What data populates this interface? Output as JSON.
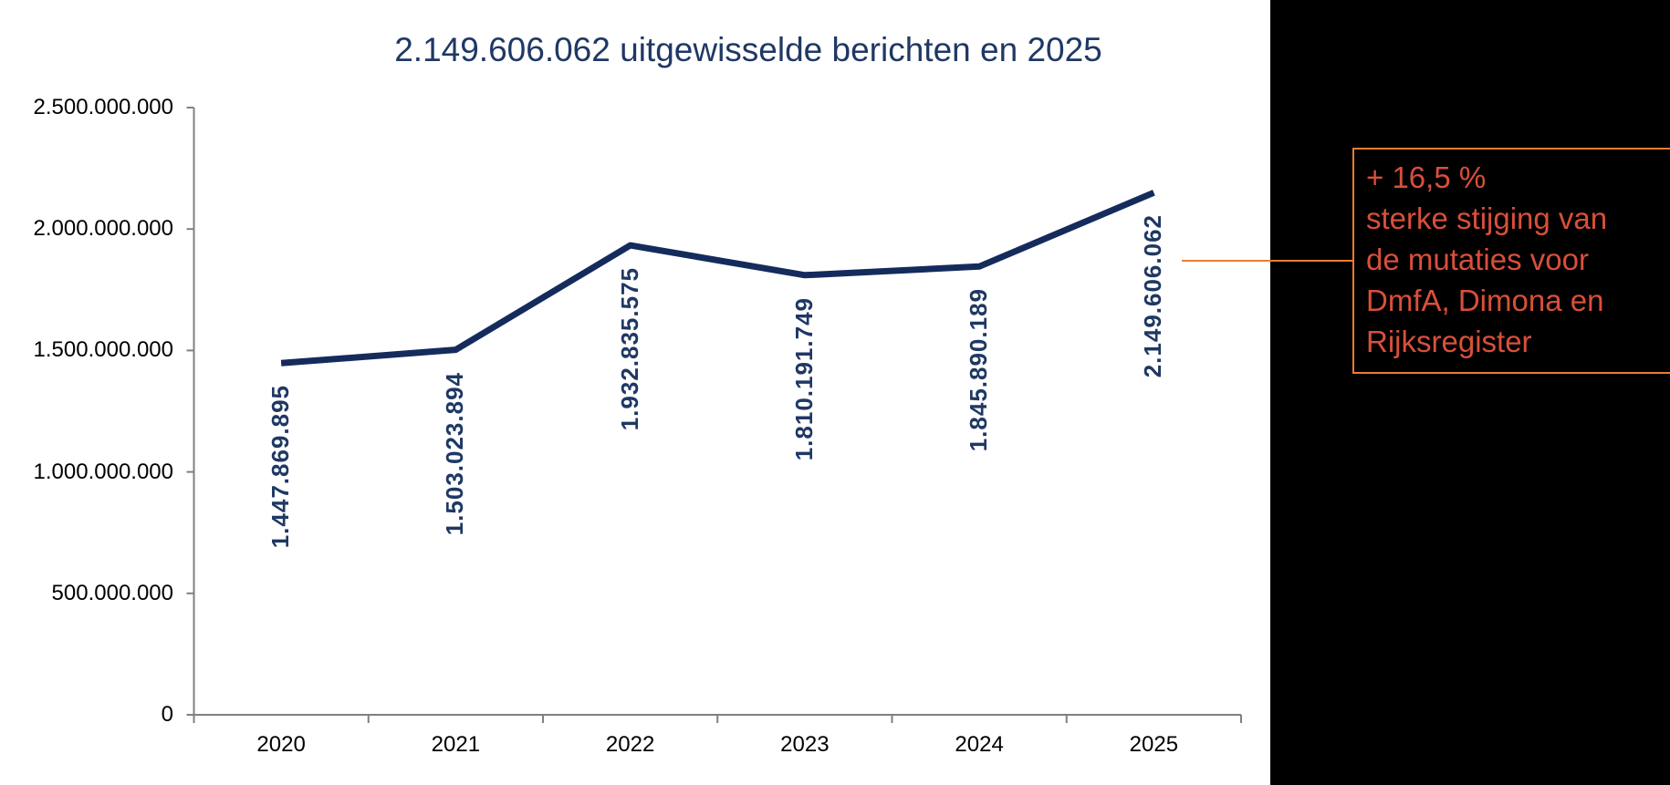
{
  "title": {
    "text": "2.149.606.062 uitgewisselde berichten en 2025"
  },
  "chart_data": {
    "type": "line",
    "title": "2.149.606.062 uitgewisselde berichten en 2025",
    "categories": [
      "2020",
      "2021",
      "2022",
      "2023",
      "2024",
      "2025"
    ],
    "series": [
      {
        "name": "uitgewisselde berichten",
        "values": [
          1447869895,
          1503023894,
          1932835575,
          1810191749,
          1845890189,
          2149606062
        ]
      }
    ],
    "value_labels": [
      "1.447.869.895",
      "1.503.023.894",
      "1.932.835.575",
      "1.810.191.749",
      "1.845.890.189",
      "2.149.606.062"
    ],
    "y_ticks": [
      {
        "label": "2.500.000.000",
        "value": 2500000000
      },
      {
        "label": "2.000.000.000",
        "value": 2000000000
      },
      {
        "label": "1.500.000.000",
        "value": 1500000000
      },
      {
        "label": "1.000.000.000",
        "value": 1000000000
      },
      {
        "label": "500.000.000",
        "value": 500000000
      },
      {
        "label": "0",
        "value": 0
      }
    ],
    "ylim": [
      0,
      2500000000
    ],
    "xlabel": "",
    "ylabel": "",
    "grid": false,
    "legend": "none",
    "line_color": "#142B5C",
    "value_label_color": "#1F3864",
    "axis_color": "#808080",
    "tick_label_color": "#000000"
  },
  "annotation": {
    "lines": [
      "+ 16,5 %",
      "sterke stijging van",
      "de mutaties voor",
      "DmfA, Dimona en",
      "Rijksregister"
    ],
    "text_color": "#D94F3B",
    "border_color": "#ED7D31",
    "connector_color": "#ED7D31"
  },
  "colors": {
    "background": "#FFFFFF",
    "side_band": "#000000",
    "title": "#1F3864"
  }
}
